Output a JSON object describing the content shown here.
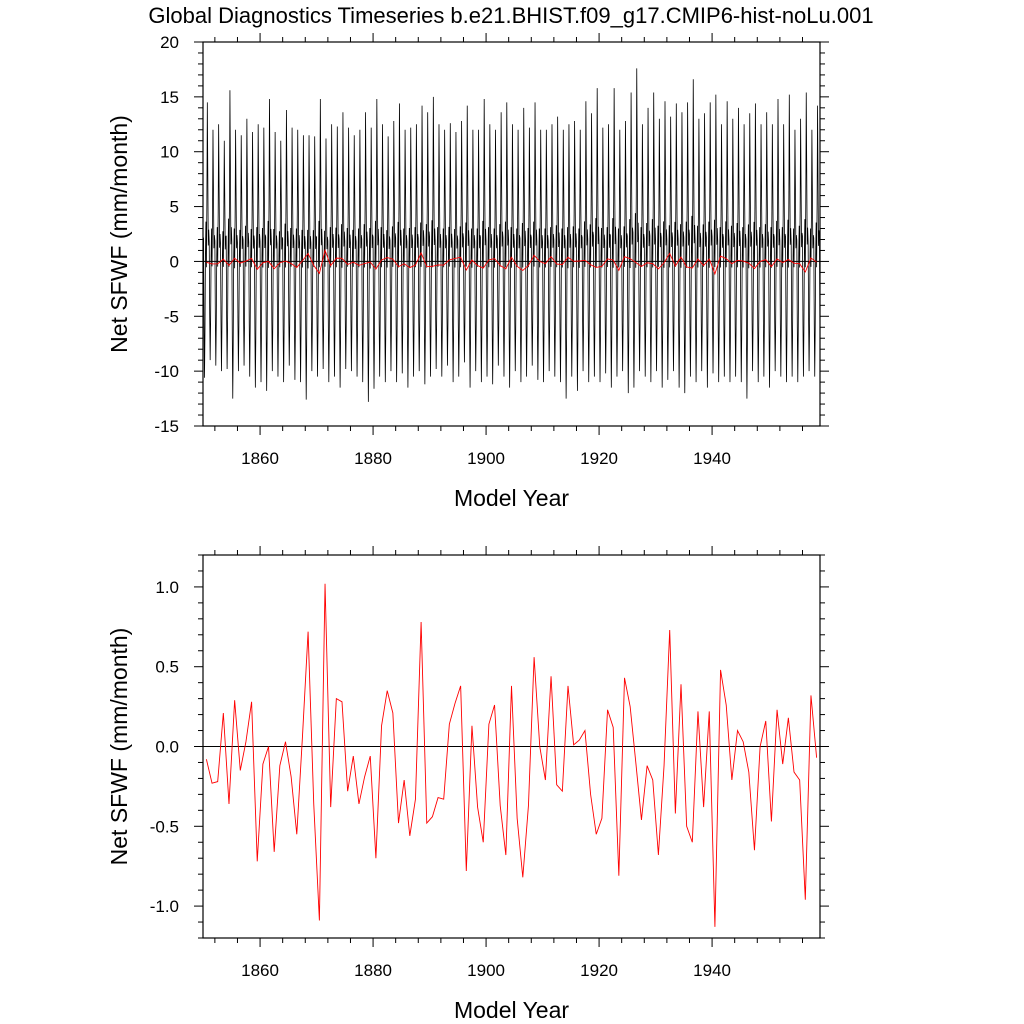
{
  "title": "Global Diagnostics Timeseries b.e21.BHIST.f09_g17.CMIP6-hist-noLu.001",
  "chart_data": [
    {
      "type": "line",
      "ylabel": "Net SFWF (mm/month)",
      "xlabel": "Model Year",
      "xlim": [
        1849.9,
        1959.1
      ],
      "ylim": [
        -15,
        20
      ],
      "xticks": [
        1860,
        1880,
        1900,
        1920,
        1940
      ],
      "xticklabels": [
        "1860",
        "1880",
        "1900",
        "1920",
        "1940"
      ],
      "yticks": [
        -15,
        -10,
        -5,
        0,
        5,
        10,
        15,
        20
      ],
      "yticklabels": [
        "-15",
        "-10",
        "-5",
        "0",
        "5",
        "10",
        "15",
        "20"
      ],
      "zero_line": true,
      "series": [
        {
          "color": "#000000",
          "description_of_monthly_envelope": "monthly values oscillating seasonally",
          "x_start": 1850.0,
          "x_step": 0.0833333,
          "annual_peaks": [
            14.5,
            12.0,
            12.5,
            11.0,
            15.6,
            12.0,
            11.5,
            13.0,
            11.8,
            12.5,
            12.2,
            14.8,
            11.8,
            11.0,
            13.8,
            12.2,
            12.0,
            11.5,
            11.5,
            11.4,
            14.8,
            11.2,
            12.5,
            12.3,
            13.6,
            12.2,
            11.5,
            12.0,
            13.6,
            12.2,
            14.8,
            12.5,
            11.4,
            12.8,
            14.4,
            12.0,
            12.2,
            12.5,
            14.2,
            13.6,
            15.0,
            12.5,
            12.0,
            12.6,
            11.8,
            12.8,
            14.2,
            12.0,
            12.0,
            14.8,
            12.5,
            12.0,
            13.6,
            14.5,
            12.5,
            12.0,
            14.0,
            12.2,
            14.5,
            12.0,
            12.0,
            12.5,
            13.2,
            12.0,
            12.5,
            12.8,
            12.0,
            14.6,
            13.5,
            15.8,
            12.2,
            12.5,
            15.8,
            12.0,
            12.8,
            15.4,
            17.6,
            12.5,
            14.0,
            15.4,
            13.0,
            14.6,
            13.2,
            14.4,
            13.6,
            14.5,
            16.6,
            13.0,
            13.5,
            14.5,
            15.2,
            12.5,
            14.6,
            13.0,
            14.0,
            12.5,
            13.5,
            14.4,
            12.5,
            13.6,
            12.5,
            14.8,
            12.5,
            15.2,
            12.0,
            13.0,
            15.4,
            12.0,
            14.2,
            14.6
          ],
          "annual_troughs": [
            -10.6,
            -9.0,
            -9.5,
            -10.0,
            -9.8,
            -12.5,
            -10.0,
            -9.5,
            -10.5,
            -11.5,
            -11.0,
            -11.8,
            -10.0,
            -10.5,
            -11.0,
            -9.5,
            -10.8,
            -11.0,
            -12.6,
            -10.0,
            -10.5,
            -9.8,
            -11.0,
            -10.5,
            -11.5,
            -9.8,
            -10.0,
            -10.5,
            -11.0,
            -12.8,
            -11.6,
            -10.5,
            -11.0,
            -10.0,
            -11.0,
            -10.2,
            -11.5,
            -10.5,
            -10.0,
            -11.2,
            -10.5,
            -9.8,
            -10.5,
            -9.5,
            -11.0,
            -10.5,
            -9.2,
            -11.5,
            -10.0,
            -11.0,
            -10.5,
            -11.2,
            -9.5,
            -10.5,
            -11.5,
            -10.0,
            -11.0,
            -10.5,
            -9.5,
            -10.8,
            -11.0,
            -10.0,
            -10.5,
            -11.0,
            -12.5,
            -10.5,
            -11.8,
            -10.0,
            -11.0,
            -10.5,
            -11.0,
            -10.2,
            -11.5,
            -10.5,
            -10.0,
            -12.0,
            -11.5,
            -10.0,
            -10.5,
            -11.0,
            -10.0,
            -11.5,
            -10.8,
            -10.0,
            -11.5,
            -12.0,
            -10.5,
            -11.0,
            -10.0,
            -11.5,
            -10.2,
            -11.0,
            -10.5,
            -11.0,
            -10.5,
            -11.0,
            -12.5,
            -10.0,
            -11.0,
            -10.5,
            -11.5,
            -10.0,
            -10.5,
            -11.0,
            -10.5,
            -11.0,
            -10.5,
            -10.0,
            -10.5,
            -10.5
          ]
        },
        {
          "color": "#ff0000",
          "name_hint": "annual mean",
          "x_start": 1850.5,
          "x_step": 1,
          "values": [
            -0.08,
            -0.23,
            -0.22,
            0.21,
            -0.36,
            0.29,
            -0.15,
            0.03,
            0.28,
            -0.72,
            -0.11,
            0.0,
            -0.66,
            -0.12,
            0.03,
            -0.19,
            -0.55,
            0.06,
            0.72,
            -0.36,
            -1.09,
            1.02,
            -0.38,
            0.3,
            0.28,
            -0.28,
            -0.06,
            -0.36,
            -0.19,
            -0.06,
            -0.7,
            0.13,
            0.35,
            0.21,
            -0.48,
            -0.21,
            -0.56,
            -0.33,
            0.78,
            -0.48,
            -0.44,
            -0.32,
            -0.33,
            0.14,
            0.27,
            0.38,
            -0.78,
            0.13,
            -0.38,
            -0.6,
            0.14,
            0.26,
            -0.37,
            -0.68,
            0.38,
            -0.45,
            -0.82,
            -0.37,
            0.56,
            0.0,
            -0.21,
            0.44,
            -0.24,
            -0.28,
            0.38,
            0.01,
            0.04,
            0.1,
            -0.3,
            -0.55,
            -0.45,
            0.23,
            0.12,
            -0.81,
            0.43,
            0.25,
            -0.1,
            -0.46,
            -0.12,
            -0.21,
            -0.68,
            -0.12,
            0.73,
            -0.42,
            0.39,
            -0.5,
            -0.6,
            0.22,
            -0.38,
            0.22,
            -1.13,
            0.48,
            0.26,
            -0.21,
            0.1,
            0.03,
            -0.16,
            -0.65,
            0.0,
            0.16,
            -0.47,
            0.23,
            -0.11,
            0.18,
            -0.16,
            -0.21,
            -0.96,
            0.32,
            -0.07
          ]
        }
      ]
    },
    {
      "type": "line",
      "ylabel": "Net SFWF (mm/month)",
      "xlabel": "Model Year",
      "xlim": [
        1849.9,
        1959.1
      ],
      "ylim": [
        -1.2,
        1.2
      ],
      "xticks": [
        1860,
        1880,
        1900,
        1920,
        1940
      ],
      "xticklabels": [
        "1860",
        "1880",
        "1900",
        "1920",
        "1940"
      ],
      "yticks": [
        -1.0,
        -0.5,
        0.0,
        0.5,
        1.0
      ],
      "yticklabels": [
        "-1.0",
        "-0.5",
        "0.0",
        "0.5",
        "1.0"
      ],
      "zero_line": true,
      "series": [
        {
          "color": "#ff0000",
          "name_hint": "annual mean",
          "x_start": 1850.5,
          "x_step": 1,
          "ref": "same as top annual series"
        }
      ]
    }
  ]
}
